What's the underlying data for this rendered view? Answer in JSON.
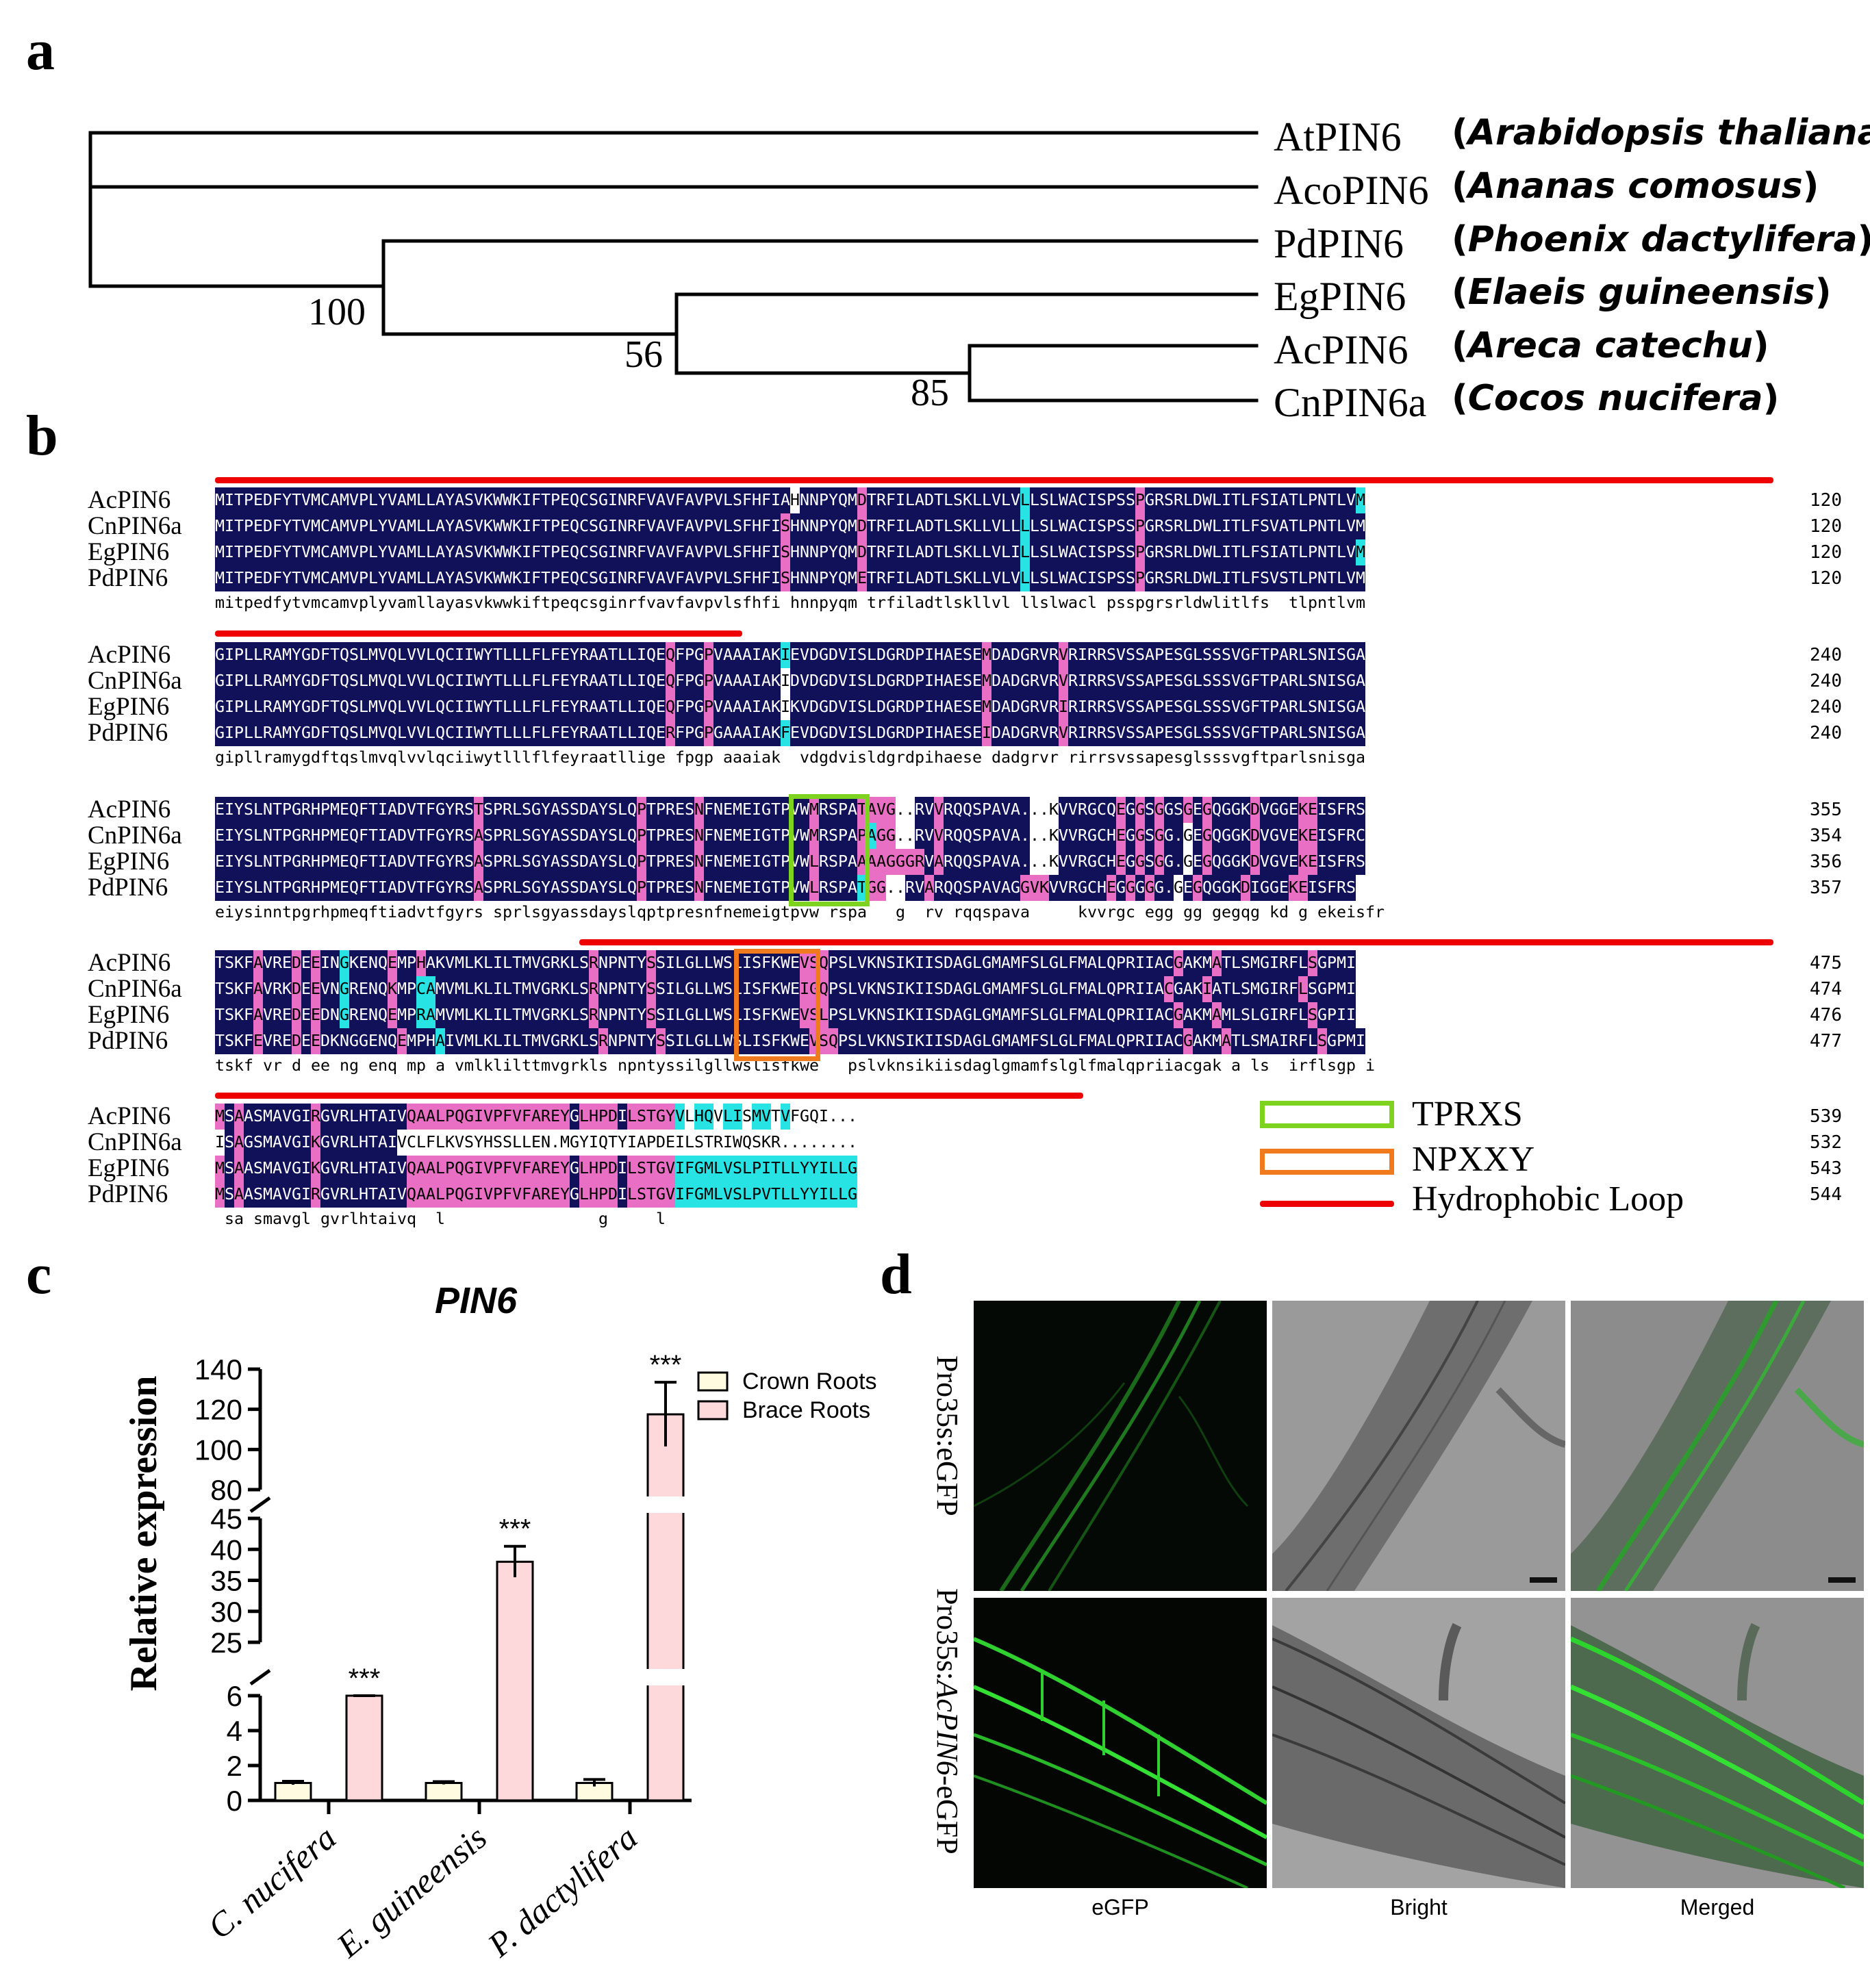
{
  "panels": {
    "a": "a",
    "b": "b",
    "c": "c",
    "d": "d"
  },
  "tree": {
    "taxa": [
      {
        "gene": "AtPIN6",
        "species": "Arabidopsis thaliana"
      },
      {
        "gene": "AcoPIN6",
        "species": "Ananas comosus"
      },
      {
        "gene": "PdPIN6",
        "species": "Phoenix dactylifera"
      },
      {
        "gene": "EgPIN6",
        "species": "Elaeis guineensis"
      },
      {
        "gene": "AcPIN6",
        "species": "Areca catechu"
      },
      {
        "gene": "CnPIN6a",
        "species": "Cocos nucifera"
      }
    ],
    "bootstraps": [
      "100",
      "56",
      "85"
    ]
  },
  "alignment": {
    "names": [
      "AcPIN6",
      "CnPIN6a",
      "EgPIN6",
      "PdPIN6"
    ],
    "blocks": [
      {
        "rows": [
          "MITPEDFYTVMCAMVPLYVAMLLAYASVKWWKIFTPEQCSGINRFVAVFAVPVLSFHFIAHNNPYQMDTRFILADTLSKLLVLVLLSLWACISPSSPGRSRLDWLITLFSIATLPNTLVM",
          "MITPEDFYTVMCAMVPLYVAMLLAYASVKWWKIFTPEQCSGINRFVAVFAVPVLSFHFISHNNPYQMDTRFILADTLSKLLVLLLLSLWACISPSSPGRSRLDWLITLFSVATLPNTLVM",
          "MITPEDFYTVMCAMVPLYVAMLLAYASVKWWKIFTPEQCSGINRFVAVFAVPVLSFHFISHNNPYQMDTRFILADTLSKLLVLILLSLWACISPSSPGRSRLDWLITLFSIATLPNTLVM",
          "MITPEDFYTVMCAMVPLYVAMLLAYASVKWWKIFTPEQCSGINRFVAVFAVPVLSFHFISHNNPYQMETRFILADTLSKLLVLVLLSLWACISPSSPGRSRLDWLITLFSVSTLPNTLVM"
        ],
        "colors": [
          "nnnnnnnnnnnnnnnnnnnnnnnnnnnnnnnnnnnnnnnnnnnnnnnnnnnnnnnnnnnnwnnnnnnpnnnnnnnnnnnnnnnncnnnnnnnnnnnpnnnnnnnnnnnnnnnnnnnnnncpnnnnnnnnn",
          "nnnnnnnnnnnnnnnnnnnnnnnnnnnnnnnnnnnnnnnnnnnnnnnnnnnnnnnnnnnpnnnnnnnpnnnnnnnnnnnnnnnncnnnnnnnnnnnpnnnnnnnnnnnnnnnnnnnnnnnncnnnnnnnnn",
          "nnnnnnnnnnnnnnnnnnnnnnnnnnnnnnnnnnnnnnnnnnnnnnnnnnnnnnnnnnnpnnnnnnnpnnnnnnnnnnnnnnnncnnnnnnnnnnnpnnnnnnnnnnnnnnnnnnnnnncpnnnnnnnnn",
          "nnnnnnnnnnnnnnnnnnnnnnnnnnnnnnnnnnnnnnnnnnnnnnnnnnnnnnnnnnnpnnnnnnnpnnnnnnnnnnnnnnnncnnnnnnnnnnnpnnnnnnnnnnnnnnnnnnnnnnnnnnnnnnnnn"
        ],
        "consensus": "mitpedfytvmcamvplyvamllayasvkwwkiftpeqcsginrfvavfavpvlsfhfi hnnpyqm trfiladtlskllvl llslwacl psspgrsrldwlitlfs  tlpntlvm",
        "ends": [
          "120",
          "120",
          "120",
          "120"
        ]
      },
      {
        "rows": [
          "GIPLLRAMYGDFTQSLMVQLVVLQCIIWYTLLLFLFEYRAATLLIQEQFPGPVAAAIAKIEVDGDVISLDGRDPIHAESEMDADGRVRVRIRRSVSSAPESGLSSSVGFTPARLSNISGA",
          "GIPLLRAMYGDFTQSLMVQLVVLQCIIWYTLLLFLFEYRAATLLIQEQFPGPVAAAIAKIDVDGDVISLDGRDPIHAESEMDADGRVRVRIRRSVSSAPESGLSSSVGFTPARLSNISGA",
          "GIPLLRAMYGDFTQSLMVQLVVLQCIIWYTLLLFLFEYRAATLLIQEQFPGPVAAAIAKIKVDGDVISLDGRDPIHAESEMDADGRVRIRIRRSVSSAPESGLSSSVGFTPARLSNISGA",
          "GIPLLRAMYGDFTQSLMVQLVVLQCIIWYTLLLFLFEYRAATLLIQERFPGPGAAAIAKFEVDGDVISLDGRDPIHAESEIDADGRVRVRIRRSVSSAPESGLSSSVGFTPARLSNISGA"
        ],
        "colors": [
          "nnnnnnnnnnnnnnnnnnnnnnnnnnnnnnnnnnnnnnnnnnnnnnnpnnnpnnnnnnncnnnnnnnnnnnnnnnnnnnnpnnnnnnnpnnnnnnnnnnnnnnnnnnnnnnnnnnnnnnnnnn",
          "nnnnnnnnnnnnnnnnnnnnnnnnnnnnnnnnnnnnnnnnnnnnnnnpnnnpnnnnnnnwnnnnnnnnnnnnnnnnnnnnpnnnnnnnpnnnnnnnnnnnnnnnnnnnnnnnnnnnnnnnnn",
          "nnnnnnnnnnnnnnnnnnnnnnnnnnnnnnnnnnnnnnnnnnnnnnnpnnnpnnnnnnnwnnnnnnnnnnnnnnnnnnnnpnnnnnnnpnnnnnnnnnnnnnnnnnnnnnnnnnnnnnnnnn",
          "nnnnnnnnnnnnnnnnnnnnnnnnnnnnnnnnnnnnnnnnnnnnnnnpnnnpnnnnnnncnnnnnnnnnnnnnnnnnnnnpnnnnnnnpnnnnnnnnnnnnnnnnnnnnnnnnnnnnnnnnn"
        ],
        "consensus": "gipllramygdftqslmvqlvvlqciiwytlllflfeyraatllige fpgp aaaiak  vdgdvisldgrdpihaese dadgrvr rirrsvssapesglsssvgftparlsnisga",
        "ends": [
          "240",
          "240",
          "240",
          "240"
        ]
      },
      {
        "rows": [
          "EIYSLNTPGRHPMEQFTIADVTFGYRSTSPRLSGYASSDAYSLQPTPRESNFNEMEIGTPVWMRSPATAVG..RVVRQQSPAVA...KVVRGCQEGGSGGSGEGQGGKDVGGEKEISFRS",
          "EIYSLNTPGRHPMEQFTIADVTFGYRSASPRLSGYASSDAYSLQPTPRESNFNEMEIGTPVWMRSPAPAGG..RVVRQQSPAVA...KVVRGCHEGGSGG.GEGQGGKDVGVEKEISFRC",
          "EIYSLNTPGRHPMEQFTIADVTFGYRSASPRLSGYASSDAYSLQPTPRESNFNEMEIGTPVWLRSPAAAAGGGRVARQQSPAVA...KVVRGCHEGGSGG.GEGQGGKDVGVEKEISFRS",
          "EIYSLNTPGRHPMEQFTIADVTFGYRSASPRLSGYASSDAYSLQPTPRESNFNEMEIGTPVWLRSPATGG..RVARQQSPAVAGGVKVVRGCHEGGGGG.GEGQGGKDIGGEKEISFRS"
        ],
        "colors": [
          "nnnnnnnnnnnnnnnnnnnnnnnnnnnpnnnnnnnnnnnnnnnnpnnnnnpnnnnnnnnnnnpnnnnppppwwnnpnnnnnnnnnwwwnnnnnnpnpnpnnpnpnnnnpnnnnppnnnnnnnp",
          "nnnnnnnnnnnnnnnnnnnnnnnnnnnpnnnnnnnnnnnnnnnnpnnnnnpnnnnnnnnnnnpnnnnpcppwwnnpnnnnnnnnnwwwnnnnnnpnpnpnnwnpnnnnpnnnnppnnnnnnnw",
          "nnnnnnnnnnnnnnnnnnnnnnnnnnnpnnnnnnnnnnnnnnnnpnnnnnpnnnnnnnnnnnpnnnnpppppppnpnnnnnnnnnwwwnnnnnnpnpnpnnwnpnnnnpnnnnppnnnnnnnp",
          "nnnnnnnnnnnnnnnnnnnnnnnnnnnpnnnnnnnnnnnnnnnnpnnnnnpnnnnnnnnnnnpnnnncppwwnnpnnnnnnnnnpppnnnnnnpnpnpnnwnpnnnnpnnnnppnnnnnnnpn"
        ],
        "consensus": "eiysinntpgrhpmeqftiadvtfgyrs sprlsgyassdayslqptpresnfnemeigtpvw rspa   g  rv rqqspava     kvvrgc egg gg gegqg kd g ekeisfr",
        "ends": [
          "355",
          "354",
          "356",
          "357"
        ]
      },
      {
        "rows": [
          "TSKFAVREDEEINGKENQEMPHAKVMLKLILTMVGRKLSRNPNTYSSILGLLWSLISFKWEVSQPSLVKNSIKIISDAGLGMAMFSLGLFMALQPRIIACGAKMATLSMGIRFLSGPMI",
          "TSKFAVRKDEEVNGRENQKMPCAMVMLKLILTMVGRKLSRNPNTYSSILGLLWSLISFKWEIGQPSLVKNSIKIISDAGLGMAMFSLGLFMALQPRIIACGAKIATLSMGIRFLSGPMI",
          "TSKFAVREDEEDNGRENQEMPRAMVMLKLILTMVGRKLSRNPNTYSSILGLLWSLISFKWEVSLPSLVKNSIKIISDAGLGMAMFSLGLFMALQPRIIACGAKMAMLSLGIRFLSGPII",
          "TSKFEVREDEEDKNGGENQEMPHAIVMLKLILTMVGRKLSRNPNTYSSILGLLWSLISFKWEVSQPSLVKNSIKIISDAGLGMAMFSLGLFMALQPRIIACGAKMATLSMAIRFLSGPMI"
        ],
        "colors": [
          "nnnnpnnnpnpnncnnnnpnnpnnnnnnnnnnnnnnnnnpnnnnnpnnnnnnnnnnnnnnnpppnnnnnnnnnnnnnnnnnnnnnnnnnnnnnnnnnnnnpnnnpnnnnnnnnnpnn",
          "nnnnpnnnpnpnncnnnnpnnccnnnnnnnnnnnnnnnnpnnnnnpnnnnnnnnnnnnnnnpppnnnnnnnnnnnnnnnnnnnnnnnnnnnnnnnnnnnpnnnpnnnnnnnnnpnn",
          "nnnnpnnnpnpnncnnnnpnnccnnnnnnnnnnnnnnnnpnnnnnpnnnnnnnnnnnnnnnpppnnnnnnnnnnnnnnnnnnnnnnnnnnnnnnnnnnnnpnnnpnnnnnnnnnpnn",
          "nnnnpnnnpnpnnnnnnnnpnnncnnnnnnnnnnnnnnnnpnnnnnpnnnnnnnnnnnnnnnpppnnnnnnnnnnnnnnnnnnnnnnnnnnnnnnnnnnnnpnnnpnnnnnnnnnpnn"
        ],
        "consensus": "tskf vr d ee ng enq mp a vmlklilttmvgrkls npntyssilgllwslisfkwe   pslvknsikiisdaglgmamfslglfmalqpriiacgak a ls  irflsgp i",
        "ends": [
          "475",
          "474",
          "476",
          "477"
        ]
      },
      {
        "rows": [
          "MSAASMAVGIRGVRLHTAIVQAALPQGIVPFVFAREYGLHPDILSTGYVLHQVLISMVTVFGQI...",
          "ISAGSMAVGIKGVRLHTAIVCLFLKVSYHSSLLEN.MGYIQTYIAPDEILSTRIWQSKR........",
          "MSAASMAVGIKGVRLHTAIVQAALPQGIVPFVFAREYGLHPDILSTGVIFGMLVSLPITLLYYILLG",
          "MSAASMAVGIRGVRLHTAIVQAALPQGIVPFVFAREYGLHPDILSTGVIFGMLVSLPVTLLYYILLG"
        ],
        "colors": [
          "pnpnnnnnnnpnnnnnnnnnpppppppppppppppppnppppnpppppcwccwccwccwcwwwwwww",
          "wnpnnnnnnnpnnnnnnnnwwwwwwwwwwwwwwwwwwwwwwwwwwwwwwwwwwwwwwwwwwwwwwww",
          "pnpnnnnnnnpnnnnnnnnnpppppppppppppppppnppppnpppppcccccccccccccccccccc",
          "pnpnnnnnnnpnnnnnnnnnpppppppppppppppppnppppnpppppcccccccccccccccccccc"
        ],
        "consensus": " sa smavgl gvrlhtaivq  l                g     l",
        "ends": [
          "539",
          "532",
          "543",
          "544"
        ]
      }
    ],
    "legend": {
      "motif1": "TPRXS",
      "motif2": "NPXXY",
      "loop": "Hydrophobic Loop"
    }
  },
  "colors": {
    "identical": "#11115a",
    "similar": "#e86fc3",
    "partial": "#27e3e3",
    "loop": "#ee0000",
    "motif1": "#7ed321",
    "motif2": "#f07a1e",
    "crown": "#fffbe0",
    "brace": "#fdd9dc"
  },
  "chart_data": {
    "type": "bar",
    "title": "PIN6",
    "ylabel": "Relative  expression",
    "categories": [
      "C. nucifera",
      "E. guineensis",
      "P. dactylifera"
    ],
    "series": [
      {
        "name": "Crown Roots",
        "values": [
          1.0,
          1.0,
          1.0
        ],
        "errors": [
          0.1,
          0.08,
          0.2
        ]
      },
      {
        "name": "Brace Roots",
        "values": [
          6.1,
          38.0,
          117.5
        ],
        "errors": [
          0.15,
          2.5,
          16
        ]
      }
    ],
    "significance": [
      "***",
      "***",
      "***"
    ],
    "y_segments": [
      {
        "range": [
          0,
          6
        ],
        "ticks": [
          "0",
          "2",
          "4",
          "6"
        ]
      },
      {
        "range": [
          25,
          45
        ],
        "ticks": [
          "25",
          "30",
          "35",
          "40",
          "45"
        ]
      },
      {
        "range": [
          80,
          140
        ],
        "ticks": [
          "80",
          "100",
          "120",
          "140"
        ]
      }
    ],
    "legend_position": "top-right"
  },
  "micrographs": {
    "rows": [
      "Pro35s:eGFP",
      "Pro35s:AcPIN6-eGFP"
    ],
    "row2_prefix": "Pro35s:",
    "row2_gene": "AcPIN6",
    "row2_suffix": "-eGFP",
    "columns": [
      "eGFP",
      "Bright",
      "Merged"
    ]
  }
}
